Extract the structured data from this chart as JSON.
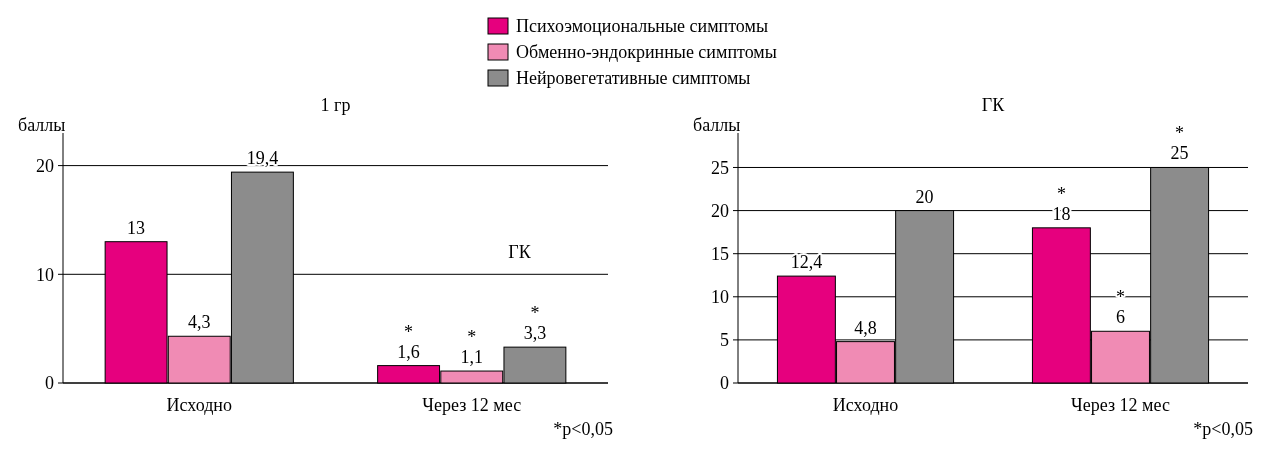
{
  "chart_data": [
    {
      "type": "bar",
      "title": "1 гр",
      "ylabel": "баллы",
      "categories": [
        "Исходно",
        "Через 12 мес"
      ],
      "ylim": [
        0,
        23
      ],
      "yticks": [
        0,
        10,
        20
      ],
      "grid": "y",
      "legend": "top",
      "series": [
        {
          "name": "Психоэмоциональные симптомы",
          "color": "#e6007e",
          "values": [
            13,
            1.6
          ],
          "value_labels": [
            "13",
            "*\n1,6"
          ]
        },
        {
          "name": "Обменно-эндокринные симптомы",
          "color": "#f08bb4",
          "values": [
            4.3,
            1.1
          ],
          "value_labels": [
            "4,3",
            "*\n1,1"
          ]
        },
        {
          "name": "Нейровегетативные симптомы",
          "color": "#8c8c8c",
          "values": [
            19.4,
            3.3
          ],
          "value_labels": [
            "19,4",
            "*\n3,3"
          ]
        }
      ],
      "annotations": [
        "ГК",
        "*p<0,05"
      ]
    },
    {
      "type": "bar",
      "title": "ГК",
      "ylabel": "баллы",
      "categories": [
        "Исходно",
        "Через 12 мес"
      ],
      "ylim": [
        0,
        29
      ],
      "yticks": [
        0,
        5,
        10,
        15,
        20,
        25
      ],
      "grid": "y",
      "series": [
        {
          "color": "#e6007e",
          "values": [
            12.4,
            18
          ],
          "value_labels": [
            "12,4",
            "*\n18"
          ]
        },
        {
          "color": "#f08bb4",
          "values": [
            4.8,
            6
          ],
          "value_labels": [
            "4,8",
            "*\n6"
          ]
        },
        {
          "color": "#8c8c8c",
          "values": [
            20,
            25
          ],
          "value_labels": [
            "20",
            "*\n25"
          ]
        }
      ],
      "annotations": [
        "*p<0,05"
      ]
    }
  ]
}
